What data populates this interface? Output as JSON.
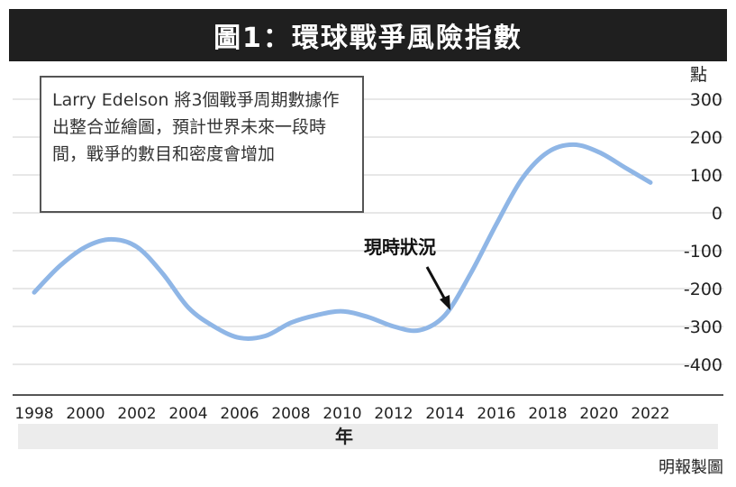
{
  "title": "圖1：環球戰爭風險指數",
  "note": "Larry Edelson 將3個戰爭周期數據作出整合並繪圖，預計世界未來一段時間，戰爭的數目和密度會增加",
  "annotation": "現時狀況",
  "unit_label": "點",
  "source": "明報製圖",
  "colors": {
    "line": "#8fb6e6",
    "title_bg": "#1f1f1f"
  },
  "chart_data": {
    "type": "line",
    "title": "圖1：環球戰爭風險指數",
    "xlabel": "年",
    "ylabel": "點",
    "xlim": [
      1998,
      2022
    ],
    "ylim": [
      -400,
      300
    ],
    "xticks": [
      1998,
      2000,
      2002,
      2004,
      2006,
      2008,
      2010,
      2012,
      2014,
      2016,
      2018,
      2020,
      2022
    ],
    "yticks": [
      300,
      200,
      100,
      0,
      -100,
      -200,
      -300,
      -400
    ],
    "grid": true,
    "series": [
      {
        "x": [
          1998,
          1999,
          2000,
          2001,
          2002,
          2003,
          2004,
          2005,
          2006,
          2007,
          2008,
          2009,
          2010,
          2011,
          2012,
          2013,
          2014,
          2015,
          2016,
          2017,
          2018,
          2019,
          2020,
          2021,
          2022
        ],
        "values": [
          -210,
          -140,
          -90,
          -70,
          -90,
          -160,
          -250,
          -300,
          -330,
          -325,
          -290,
          -270,
          -260,
          -275,
          -300,
          -310,
          -270,
          -160,
          -30,
          90,
          160,
          180,
          160,
          120,
          80
        ]
      }
    ]
  }
}
